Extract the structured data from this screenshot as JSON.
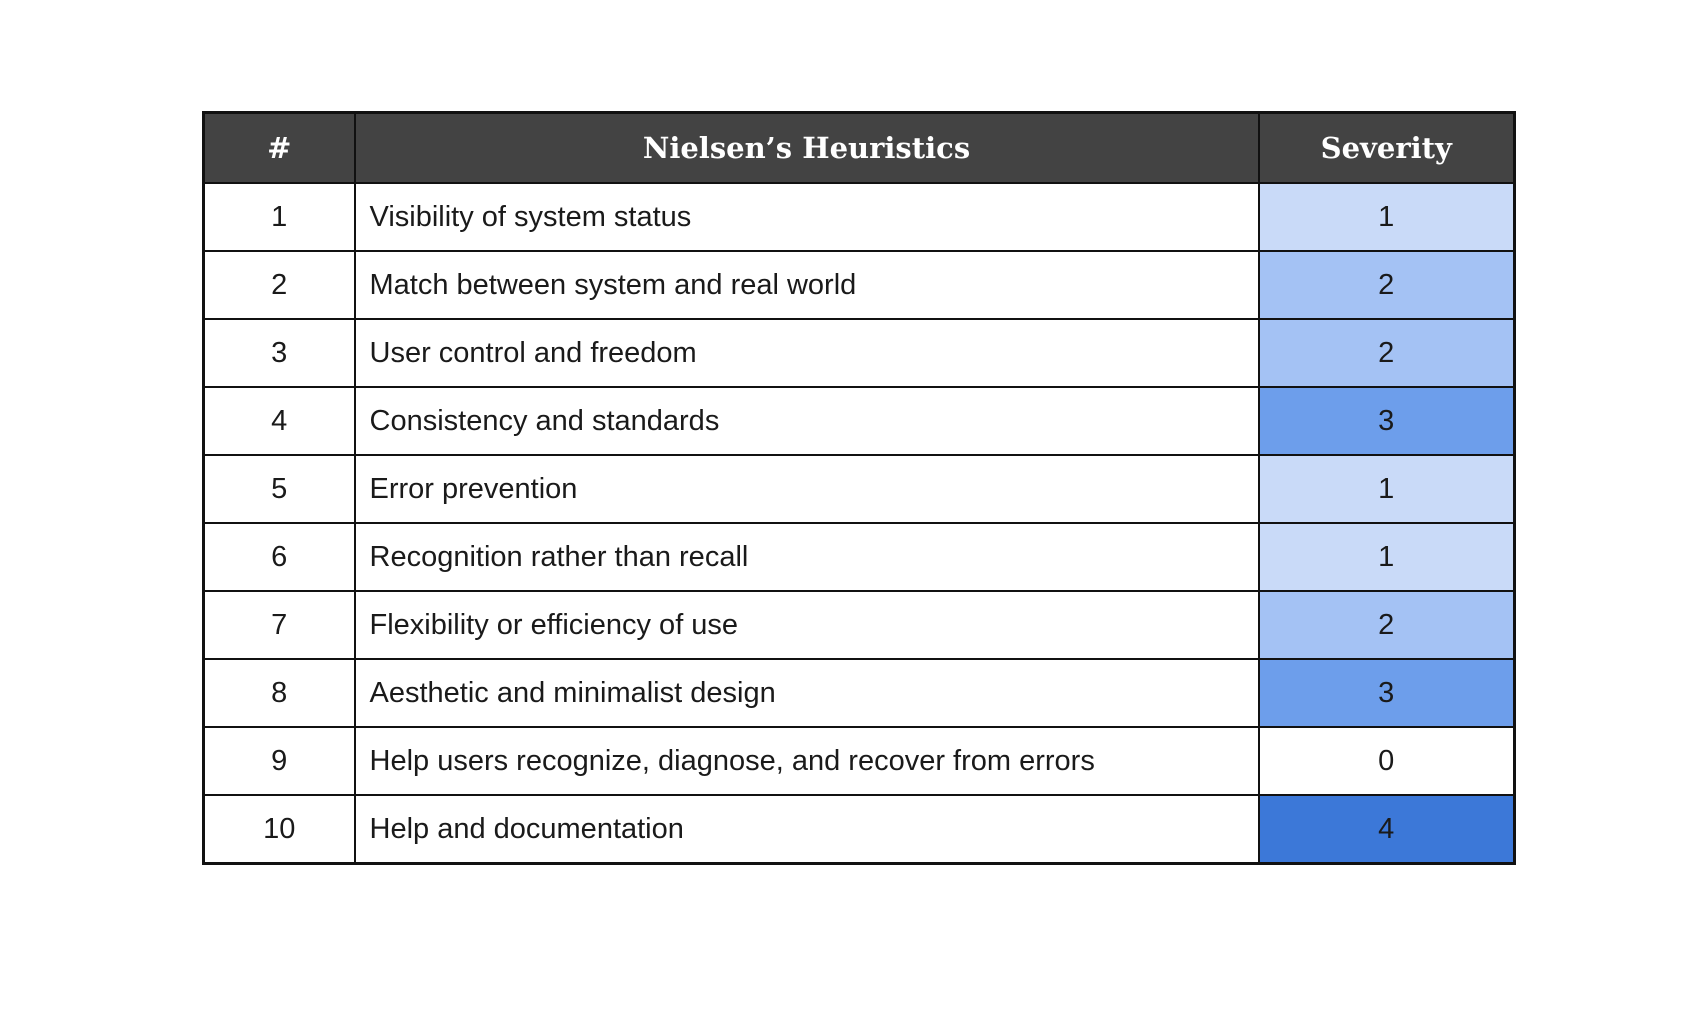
{
  "table": {
    "headers": [
      "#",
      "Nielsen’s Heuristics",
      "Severity"
    ],
    "severity_colors": {
      "0": "#ffffff",
      "1": "#c9daf8",
      "2": "#a4c2f4",
      "3": "#6d9eeb",
      "4": "#3c78d8"
    },
    "rows": [
      {
        "num": "1",
        "heuristic": "Visibility of system status",
        "severity": "1"
      },
      {
        "num": "2",
        "heuristic": "Match between system and real world",
        "severity": "2"
      },
      {
        "num": "3",
        "heuristic": "User control and freedom",
        "severity": "2"
      },
      {
        "num": "4",
        "heuristic": "Consistency and standards",
        "severity": "3"
      },
      {
        "num": "5",
        "heuristic": "Error prevention",
        "severity": "1"
      },
      {
        "num": "6",
        "heuristic": "Recognition rather than recall",
        "severity": "1"
      },
      {
        "num": "7",
        "heuristic": "Flexibility or efficiency of use",
        "severity": "2"
      },
      {
        "num": "8",
        "heuristic": "Aesthetic and minimalist design",
        "severity": "3"
      },
      {
        "num": "9",
        "heuristic": "Help users recognize, diagnose, and recover from errors",
        "severity": "0"
      },
      {
        "num": "10",
        "heuristic": "Help and documentation",
        "severity": "4"
      }
    ]
  }
}
